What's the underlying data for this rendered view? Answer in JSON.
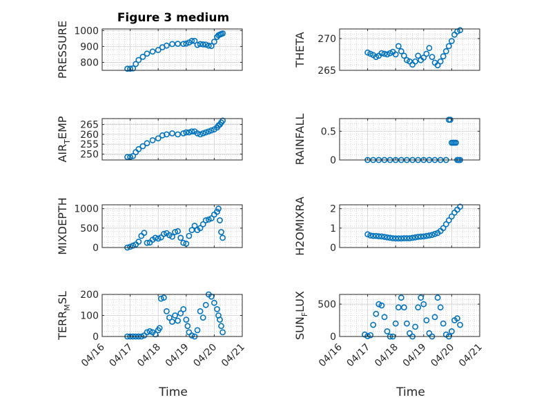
{
  "title": "Figure 3 medium",
  "x_axis_label": "Time",
  "colors": {
    "marker": "#0072BD",
    "axes": "#262626",
    "grid": "#d0d0d0"
  },
  "chart_data": [
    {
      "type": "scatter",
      "id": "pressure",
      "ylabel": "PRESSURE",
      "ylim": [
        750,
        1010
      ],
      "yticks": [
        800,
        900,
        1000
      ],
      "x_dates": [
        "04/16",
        "04/17",
        "04/18",
        "04/19",
        "04/20",
        "04/21"
      ],
      "xlim_days": [
        0,
        5
      ],
      "grid": true,
      "x": [
        0.9,
        1.0,
        1.1,
        1.2,
        1.3,
        1.45,
        1.6,
        1.8,
        2.0,
        2.15,
        2.3,
        2.5,
        2.7,
        2.9,
        3.0,
        3.1,
        3.2,
        3.3,
        3.4,
        3.5,
        3.6,
        3.7,
        3.8,
        3.9,
        4.0,
        4.1,
        4.15,
        4.2,
        4.25,
        4.3
      ],
      "y": [
        760,
        760,
        762,
        790,
        815,
        835,
        855,
        868,
        878,
        895,
        905,
        915,
        917,
        916,
        918,
        925,
        935,
        935,
        910,
        915,
        913,
        912,
        905,
        903,
        930,
        960,
        970,
        975,
        978,
        982
      ]
    },
    {
      "type": "scatter",
      "id": "theta",
      "ylabel": "THETA",
      "ylim": [
        265,
        271.5
      ],
      "yticks": [
        265,
        270
      ],
      "x_dates": [
        "04/16",
        "04/17",
        "04/18",
        "04/19",
        "04/20",
        "04/21"
      ],
      "xlim_days": [
        0,
        5
      ],
      "grid": true,
      "x": [
        1.0,
        1.1,
        1.2,
        1.3,
        1.4,
        1.5,
        1.6,
        1.7,
        1.8,
        1.9,
        2.0,
        2.1,
        2.2,
        2.3,
        2.4,
        2.5,
        2.6,
        2.7,
        2.8,
        2.9,
        3.0,
        3.1,
        3.2,
        3.3,
        3.4,
        3.5,
        3.6,
        3.7,
        3.8,
        3.9,
        4.0,
        4.1,
        4.2,
        4.3
      ],
      "y": [
        267.8,
        267.6,
        267.4,
        267.1,
        267.3,
        267.7,
        267.6,
        267.5,
        267.7,
        267.9,
        267.5,
        268.8,
        268.0,
        267.3,
        266.6,
        266.4,
        265.9,
        266.4,
        267.3,
        266.6,
        267.0,
        267.6,
        268.5,
        267.1,
        266.2,
        265.8,
        266.4,
        267.2,
        268.0,
        268.8,
        269.6,
        270.6,
        271.1,
        271.3
      ]
    },
    {
      "type": "scatter",
      "id": "air_temp",
      "ylabel": "AIR_TEMP",
      "ylim": [
        247,
        268
      ],
      "yticks": [
        250,
        255,
        260,
        265
      ],
      "x_dates": [
        "04/16",
        "04/17",
        "04/18",
        "04/19",
        "04/20",
        "04/21"
      ],
      "xlim_days": [
        0,
        5
      ],
      "grid": true,
      "x": [
        0.9,
        1.0,
        1.1,
        1.2,
        1.3,
        1.45,
        1.6,
        1.8,
        2.0,
        2.15,
        2.3,
        2.5,
        2.7,
        2.9,
        3.0,
        3.1,
        3.2,
        3.3,
        3.4,
        3.5,
        3.6,
        3.7,
        3.8,
        3.9,
        4.0,
        4.1,
        4.15,
        4.2,
        4.25,
        4.3
      ],
      "y": [
        248.5,
        248.5,
        249,
        251,
        252.5,
        254,
        255.5,
        257,
        258,
        259.5,
        260,
        260.5,
        260,
        260.5,
        261,
        261,
        261.5,
        261.5,
        260.5,
        260,
        260.5,
        261,
        261.5,
        262,
        262.5,
        263.5,
        264.5,
        265,
        266,
        267
      ]
    },
    {
      "type": "scatter",
      "id": "rainfall",
      "ylabel": "RAINFALL",
      "ylim": [
        0,
        0.72
      ],
      "yticks": [
        0,
        0.5
      ],
      "x_dates": [
        "04/16",
        "04/17",
        "04/18",
        "04/19",
        "04/20",
        "04/21"
      ],
      "xlim_days": [
        0,
        5
      ],
      "grid": true,
      "x": [
        1.0,
        1.2,
        1.4,
        1.6,
        1.8,
        2.0,
        2.2,
        2.4,
        2.6,
        2.8,
        3.0,
        3.2,
        3.4,
        3.6,
        3.8,
        3.9,
        3.95,
        4.0,
        4.05,
        4.1,
        4.15,
        4.2,
        4.25,
        4.3
      ],
      "y": [
        0,
        0,
        0,
        0,
        0,
        0,
        0,
        0,
        0,
        0,
        0,
        0,
        0,
        0,
        0,
        0.7,
        0.7,
        0.3,
        0.3,
        0.3,
        0.3,
        0,
        0,
        0
      ]
    },
    {
      "type": "scatter",
      "id": "mixdepth",
      "ylabel": "MIXDEPTH",
      "ylim": [
        0,
        1100
      ],
      "yticks": [
        0,
        500,
        1000
      ],
      "x_dates": [
        "04/16",
        "04/17",
        "04/18",
        "04/19",
        "04/20",
        "04/21"
      ],
      "xlim_days": [
        0,
        5
      ],
      "grid": true,
      "x": [
        0.9,
        1.0,
        1.1,
        1.2,
        1.3,
        1.4,
        1.5,
        1.6,
        1.7,
        1.8,
        1.9,
        2.0,
        2.1,
        2.2,
        2.3,
        2.4,
        2.5,
        2.6,
        2.7,
        2.8,
        2.9,
        3.0,
        3.1,
        3.2,
        3.3,
        3.4,
        3.5,
        3.6,
        3.7,
        3.8,
        3.9,
        4.0,
        4.1,
        4.15,
        4.2,
        4.25,
        4.3
      ],
      "y": [
        0,
        20,
        50,
        80,
        150,
        300,
        380,
        120,
        130,
        200,
        250,
        230,
        260,
        350,
        370,
        320,
        280,
        400,
        420,
        250,
        120,
        100,
        300,
        450,
        560,
        450,
        500,
        600,
        700,
        720,
        750,
        850,
        920,
        1000,
        700,
        400,
        250
      ]
    },
    {
      "type": "scatter",
      "id": "h2omixra",
      "ylabel": "H2OMIXRA",
      "ylim": [
        0,
        2.2
      ],
      "yticks": [
        0,
        1,
        2
      ],
      "x_dates": [
        "04/16",
        "04/17",
        "04/18",
        "04/19",
        "04/20",
        "04/21"
      ],
      "xlim_days": [
        0,
        5
      ],
      "grid": true,
      "x": [
        1.0,
        1.1,
        1.2,
        1.3,
        1.4,
        1.5,
        1.6,
        1.7,
        1.8,
        1.9,
        2.0,
        2.1,
        2.2,
        2.3,
        2.4,
        2.5,
        2.6,
        2.7,
        2.8,
        2.9,
        3.0,
        3.1,
        3.2,
        3.3,
        3.4,
        3.5,
        3.6,
        3.7,
        3.8,
        3.9,
        4.0,
        4.1,
        4.2,
        4.3
      ],
      "y": [
        0.68,
        0.62,
        0.6,
        0.6,
        0.58,
        0.57,
        0.55,
        0.52,
        0.5,
        0.48,
        0.47,
        0.47,
        0.47,
        0.48,
        0.48,
        0.48,
        0.5,
        0.52,
        0.55,
        0.56,
        0.57,
        0.6,
        0.62,
        0.65,
        0.7,
        0.75,
        0.85,
        1.0,
        1.2,
        1.4,
        1.6,
        1.8,
        1.95,
        2.1
      ]
    },
    {
      "type": "scatter",
      "id": "terr_msl",
      "ylabel": "TERR_MSL",
      "ylim": [
        0,
        200
      ],
      "yticks": [
        0,
        100,
        200
      ],
      "x_dates": [
        "04/16",
        "04/17",
        "04/18",
        "04/19",
        "04/20",
        "04/21"
      ],
      "xlim_days": [
        0,
        5
      ],
      "grid": true,
      "x": [
        0.9,
        1.0,
        1.1,
        1.2,
        1.3,
        1.4,
        1.5,
        1.6,
        1.7,
        1.8,
        1.9,
        2.0,
        2.05,
        2.1,
        2.2,
        2.3,
        2.4,
        2.5,
        2.6,
        2.7,
        2.8,
        2.9,
        3.0,
        3.05,
        3.1,
        3.2,
        3.3,
        3.4,
        3.5,
        3.6,
        3.7,
        3.8,
        3.9,
        4.0,
        4.1,
        4.15,
        4.2,
        4.25,
        4.3
      ],
      "y": [
        0,
        0,
        0,
        0,
        0,
        0,
        5,
        20,
        25,
        20,
        10,
        30,
        40,
        180,
        185,
        120,
        90,
        70,
        100,
        75,
        110,
        130,
        80,
        50,
        20,
        5,
        0,
        30,
        120,
        90,
        150,
        200,
        190,
        160,
        130,
        100,
        80,
        50,
        20
      ]
    },
    {
      "type": "scatter",
      "id": "sun_flux",
      "ylabel": "SUN_FLUX",
      "ylim": [
        0,
        650
      ],
      "yticks": [
        0,
        500
      ],
      "x_dates": [
        "04/16",
        "04/17",
        "04/18",
        "04/19",
        "04/20",
        "04/21"
      ],
      "xlim_days": [
        0,
        5
      ],
      "grid": true,
      "x": [
        0.9,
        1.0,
        1.1,
        1.2,
        1.3,
        1.4,
        1.5,
        1.6,
        1.7,
        1.8,
        1.9,
        2.0,
        2.1,
        2.2,
        2.3,
        2.4,
        2.5,
        2.6,
        2.7,
        2.8,
        2.9,
        3.0,
        3.1,
        3.2,
        3.3,
        3.4,
        3.5,
        3.6,
        3.7,
        3.8,
        3.9,
        4.0,
        4.1,
        4.2,
        4.3
      ],
      "y": [
        30,
        5,
        20,
        180,
        350,
        500,
        480,
        300,
        80,
        0,
        0,
        200,
        450,
        600,
        450,
        200,
        50,
        0,
        150,
        450,
        600,
        500,
        250,
        50,
        0,
        300,
        600,
        450,
        200,
        30,
        0,
        80,
        250,
        280,
        180
      ]
    }
  ],
  "tick_labels": {
    "pressure": [
      "800",
      "900",
      "1000"
    ],
    "theta": [
      "265",
      "270"
    ],
    "air_temp": [
      "250",
      "255",
      "260",
      "265"
    ],
    "rainfall": [
      "0",
      "0.5"
    ],
    "mixdepth": [
      "0",
      "500",
      "1000"
    ],
    "h2omixra": [
      "0",
      "1",
      "2"
    ],
    "terr_msl": [
      "0",
      "100",
      "200"
    ],
    "sun_flux": [
      "0",
      "500"
    ],
    "dates": [
      "04/16",
      "04/17",
      "04/18",
      "04/19",
      "04/20",
      "04/21"
    ]
  },
  "ylabel_parts": {
    "air_temp": {
      "main": "AIR",
      "sub": "T",
      "rest": "EMP"
    },
    "terr_msl": {
      "main": "TERR",
      "sub": "M",
      "rest": "SL"
    },
    "sun_flux": {
      "main": "SUN",
      "sub": "F",
      "rest": "LUX"
    }
  }
}
